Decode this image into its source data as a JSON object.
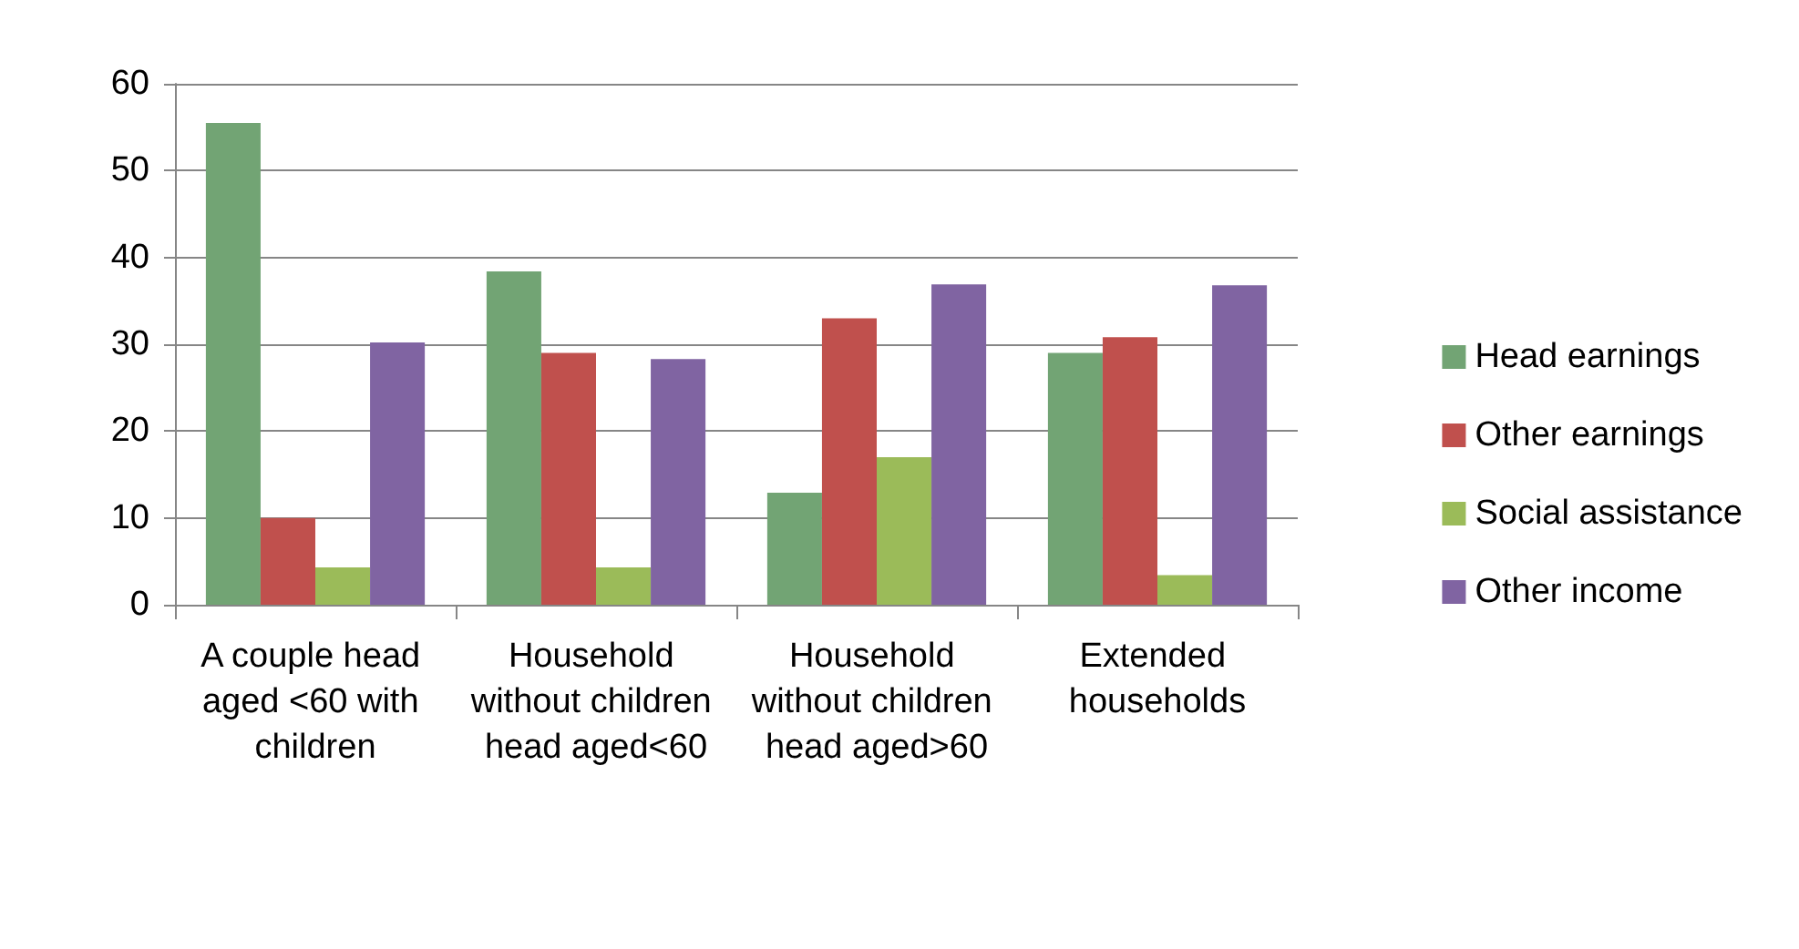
{
  "chart_data": {
    "type": "bar",
    "categories": [
      "A couple head aged <60 with children",
      "Household without children head aged<60",
      "Household without children head aged>60",
      "Extended households"
    ],
    "series": [
      {
        "name": "Head earnings",
        "color": "#72a474",
        "values": [
          55.5,
          38.4,
          12.9,
          29
        ]
      },
      {
        "name": "Other earnings",
        "color": "#c0504d",
        "values": [
          10,
          29,
          33,
          30.8
        ]
      },
      {
        "name": "Social assistance",
        "color": "#9bbb59",
        "values": [
          4.3,
          4.3,
          17,
          3.4
        ]
      },
      {
        "name": "Other income",
        "color": "#8064a2",
        "values": [
          30.2,
          28.3,
          36.9,
          36.8
        ]
      }
    ],
    "ylim": [
      0,
      60
    ],
    "yticks": [
      0,
      10,
      20,
      30,
      40,
      50,
      60
    ],
    "grid": "y",
    "legend": "right"
  }
}
